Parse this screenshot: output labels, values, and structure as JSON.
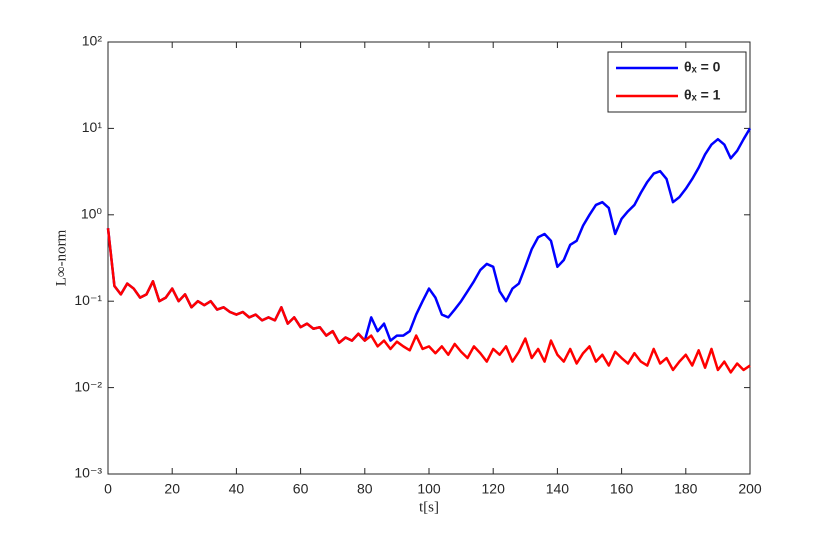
{
  "chart_data": {
    "type": "line",
    "xlabel": "t[s]",
    "ylabel": "L∞-norm",
    "x": [
      0,
      2,
      4,
      6,
      8,
      10,
      12,
      14,
      16,
      18,
      20,
      22,
      24,
      26,
      28,
      30,
      32,
      34,
      36,
      38,
      40,
      42,
      44,
      46,
      48,
      50,
      52,
      54,
      56,
      58,
      60,
      62,
      64,
      66,
      68,
      70,
      72,
      74,
      76,
      78,
      80,
      82,
      84,
      86,
      88,
      90,
      92,
      94,
      96,
      98,
      100,
      102,
      104,
      106,
      108,
      110,
      112,
      114,
      116,
      118,
      120,
      122,
      124,
      126,
      128,
      130,
      132,
      134,
      136,
      138,
      140,
      142,
      144,
      146,
      148,
      150,
      152,
      154,
      156,
      158,
      160,
      162,
      164,
      166,
      168,
      170,
      172,
      174,
      176,
      178,
      180,
      182,
      184,
      186,
      188,
      190,
      192,
      194,
      196,
      198,
      200
    ],
    "series": [
      {
        "name": "θₓ = 0",
        "color": "#0000ff",
        "values": [
          0.7,
          0.15,
          0.12,
          0.16,
          0.14,
          0.11,
          0.12,
          0.17,
          0.1,
          0.11,
          0.14,
          0.1,
          0.12,
          0.085,
          0.1,
          0.09,
          0.1,
          0.08,
          0.085,
          0.075,
          0.07,
          0.075,
          0.065,
          0.07,
          0.06,
          0.065,
          0.06,
          0.085,
          0.055,
          0.065,
          0.05,
          0.055,
          0.048,
          0.05,
          0.04,
          0.045,
          0.033,
          0.038,
          0.035,
          0.042,
          0.035,
          0.065,
          0.045,
          0.055,
          0.035,
          0.04,
          0.04,
          0.045,
          0.07,
          0.1,
          0.14,
          0.11,
          0.07,
          0.065,
          0.08,
          0.1,
          0.13,
          0.17,
          0.23,
          0.27,
          0.25,
          0.13,
          0.1,
          0.14,
          0.16,
          0.25,
          0.4,
          0.55,
          0.6,
          0.5,
          0.25,
          0.3,
          0.45,
          0.5,
          0.75,
          1.0,
          1.3,
          1.4,
          1.2,
          0.6,
          0.9,
          1.1,
          1.3,
          1.8,
          2.4,
          3.0,
          3.2,
          2.6,
          1.4,
          1.6,
          2.0,
          2.6,
          3.5,
          5.0,
          6.5,
          7.5,
          6.5,
          4.5,
          5.5,
          7.5,
          10
        ]
      },
      {
        "name": "θₓ = 1",
        "color": "#ff0000",
        "values": [
          0.7,
          0.15,
          0.12,
          0.16,
          0.14,
          0.11,
          0.12,
          0.17,
          0.1,
          0.11,
          0.14,
          0.1,
          0.12,
          0.085,
          0.1,
          0.09,
          0.1,
          0.08,
          0.085,
          0.075,
          0.07,
          0.075,
          0.065,
          0.07,
          0.06,
          0.065,
          0.06,
          0.085,
          0.055,
          0.065,
          0.05,
          0.055,
          0.048,
          0.05,
          0.04,
          0.045,
          0.033,
          0.038,
          0.035,
          0.042,
          0.035,
          0.04,
          0.03,
          0.035,
          0.028,
          0.034,
          0.03,
          0.027,
          0.04,
          0.028,
          0.03,
          0.025,
          0.03,
          0.024,
          0.032,
          0.026,
          0.022,
          0.03,
          0.025,
          0.02,
          0.028,
          0.024,
          0.03,
          0.02,
          0.026,
          0.037,
          0.022,
          0.028,
          0.02,
          0.035,
          0.024,
          0.02,
          0.028,
          0.019,
          0.025,
          0.03,
          0.02,
          0.024,
          0.018,
          0.026,
          0.022,
          0.019,
          0.025,
          0.02,
          0.018,
          0.028,
          0.019,
          0.022,
          0.016,
          0.02,
          0.024,
          0.018,
          0.027,
          0.017,
          0.028,
          0.016,
          0.02,
          0.015,
          0.019,
          0.016,
          0.018
        ]
      }
    ],
    "xlim": [
      0,
      200
    ],
    "xticks": [
      0,
      20,
      40,
      60,
      80,
      100,
      120,
      140,
      160,
      180,
      200
    ],
    "ylim": [
      0.001,
      100
    ],
    "log_y": true,
    "yticks": [
      {
        "value": 0.001,
        "label": "10⁻³"
      },
      {
        "value": 0.01,
        "label": "10⁻²"
      },
      {
        "value": 0.1,
        "label": "10⁻¹"
      },
      {
        "value": 1,
        "label": "10⁰"
      },
      {
        "value": 10,
        "label": "10¹"
      },
      {
        "value": 100,
        "label": "10²"
      }
    ],
    "legend": "upper right"
  }
}
